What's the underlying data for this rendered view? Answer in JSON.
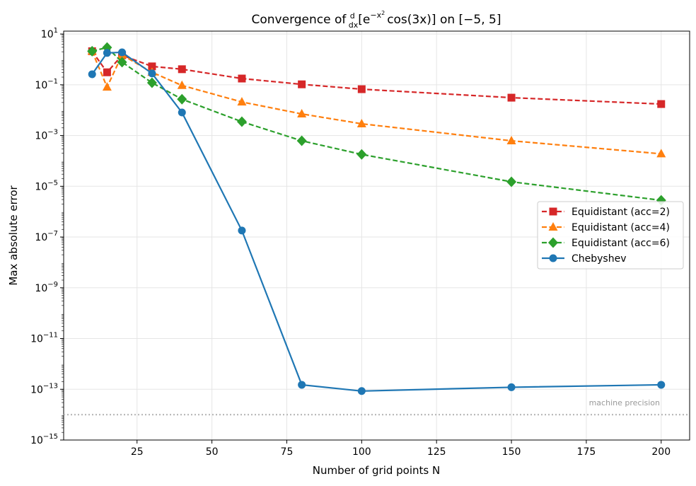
{
  "chart_data": {
    "type": "line",
    "title": "Convergence of d/dx[e^{-x^2} cos(3x)] on [−5, 5]",
    "title_parts": {
      "prefix": "Convergence of ",
      "frac_num": "d",
      "frac_den": "dx",
      "expr_a": "[e",
      "exp": "−x",
      "exp2": "2",
      "expr_b": "cos(3x)] on [−5, 5]"
    },
    "xlabel": "Number of grid points N",
    "ylabel": "Max absolute error",
    "xlim": [
      0.5,
      209.5
    ],
    "ylim": [
      1e-15,
      13
    ],
    "yscale": "log",
    "grid": true,
    "legend_position": "center-right",
    "xticks": [
      25,
      50,
      75,
      100,
      125,
      150,
      175,
      200
    ],
    "yticks_exp": [
      1,
      -1,
      -3,
      -5,
      -7,
      -9,
      -11,
      -13,
      -15
    ],
    "x": [
      10,
      15,
      20,
      30,
      40,
      60,
      80,
      100,
      150,
      200
    ],
    "series": [
      {
        "name": "Equidistant (acc=2)",
        "color": "#d62728",
        "marker": "square",
        "dash": true,
        "values": [
          2.1,
          0.31,
          1.46,
          0.53,
          0.41,
          0.176,
          0.104,
          0.067,
          0.031,
          0.0174
        ]
      },
      {
        "name": "Equidistant (acc=4)",
        "color": "#ff7f0e",
        "marker": "triangle",
        "dash": true,
        "values": [
          2.1,
          0.081,
          1.5,
          0.31,
          0.094,
          0.021,
          0.0071,
          0.0029,
          0.00062,
          0.00019
        ]
      },
      {
        "name": "Equidistant (acc=6)",
        "color": "#2ca02c",
        "marker": "diamond",
        "dash": true,
        "values": [
          2.1,
          2.95,
          0.78,
          0.12,
          0.027,
          0.0035,
          0.00062,
          0.00018,
          1.5e-05,
          2.8e-06
        ]
      },
      {
        "name": "Chebyshev",
        "color": "#1f77b4",
        "marker": "circle",
        "dash": false,
        "values": [
          0.26,
          1.8,
          1.9,
          0.28,
          0.0081,
          1.8e-07,
          1.5e-13,
          8.5e-14,
          1.2e-13,
          1.5e-13
        ]
      }
    ],
    "annotations": [
      {
        "text": "machine precision",
        "y": 1e-14,
        "color": "#999999"
      }
    ]
  }
}
